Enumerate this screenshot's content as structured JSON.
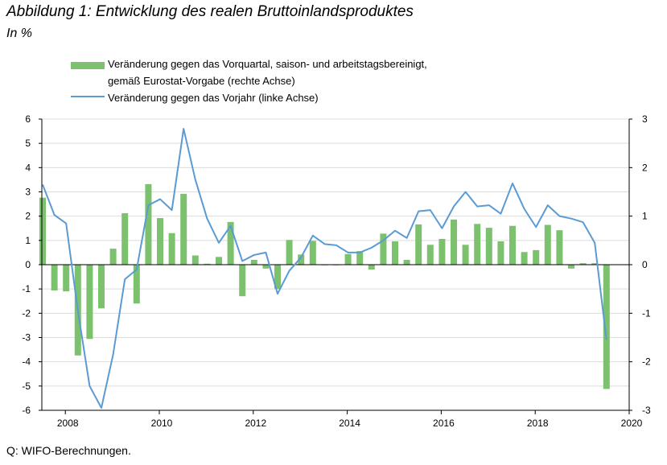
{
  "title": "Abbildung 1: Entwicklung des realen Bruttoinlandsproduktes",
  "subtitle": "In %",
  "legend": {
    "bar_line1": "Veränderung gegen das Vorquartal, saison- und arbeitstagsbereinigt,",
    "bar_line2": "gemäß Eurostat-Vorgabe (rechte Achse)",
    "line": "Veränderung gegen das Vorjahr (linke Achse)"
  },
  "source": "Q: WIFO-Berechnungen.",
  "chart_data": {
    "type": "bar+line",
    "bar_color": "#7cc16e",
    "line_color": "#5a9bd4",
    "left_axis": {
      "ylim": [
        -6,
        6
      ],
      "ticks": [
        "-6",
        "-5",
        "-4",
        "-3",
        "-2",
        "-1",
        "0",
        "1",
        "2",
        "3",
        "4",
        "5",
        "6"
      ]
    },
    "right_axis": {
      "ylim": [
        -3,
        3
      ],
      "ticks": [
        "-3",
        "-2",
        "-1",
        "0",
        "1",
        "2",
        "3"
      ]
    },
    "x_axis": {
      "range": [
        2007.5,
        2020
      ],
      "tick_labels": [
        "2008",
        "2010",
        "2012",
        "2014",
        "2016",
        "2018",
        "2020"
      ]
    },
    "grid": "horizontal",
    "bars_qoq": {
      "x": [
        2007.5,
        2007.75,
        2008.0,
        2008.25,
        2008.5,
        2008.75,
        2009.0,
        2009.25,
        2009.5,
        2009.75,
        2010.0,
        2010.25,
        2010.5,
        2010.75,
        2011.0,
        2011.25,
        2011.5,
        2011.75,
        2012.0,
        2012.25,
        2012.5,
        2012.75,
        2013.0,
        2013.25,
        2013.5,
        2013.75,
        2014.0,
        2014.25,
        2014.5,
        2014.75,
        2015.0,
        2015.25,
        2015.5,
        2015.75,
        2016.0,
        2016.25,
        2016.5,
        2016.75,
        2017.0,
        2017.25,
        2017.5,
        2017.75,
        2018.0,
        2018.25,
        2018.5,
        2018.75,
        2019.0,
        2019.25,
        2019.5
      ],
      "values": [
        1.38,
        -0.53,
        -0.55,
        -1.87,
        -1.53,
        -0.9,
        0.33,
        1.06,
        -0.8,
        1.66,
        0.96,
        0.65,
        1.46,
        0.19,
        0.02,
        0.16,
        0.88,
        -0.65,
        0.1,
        -0.08,
        -0.5,
        0.51,
        0.21,
        0.49,
        -0.01,
        -0.01,
        0.22,
        0.28,
        -0.1,
        0.64,
        0.48,
        0.1,
        0.83,
        0.41,
        0.53,
        0.93,
        0.41,
        0.84,
        0.76,
        0.48,
        0.8,
        0.26,
        0.3,
        0.82,
        0.71,
        -0.08,
        0.03,
        0.03,
        -2.56
      ]
    },
    "line_yoy": {
      "x": [
        2007.5,
        2007.75,
        2008.0,
        2008.25,
        2008.5,
        2008.75,
        2009.0,
        2009.25,
        2009.5,
        2009.75,
        2010.0,
        2010.25,
        2010.5,
        2010.75,
        2011.0,
        2011.25,
        2011.5,
        2011.75,
        2012.0,
        2012.25,
        2012.5,
        2012.75,
        2013.0,
        2013.25,
        2013.5,
        2013.75,
        2014.0,
        2014.25,
        2014.5,
        2014.75,
        2015.0,
        2015.25,
        2015.5,
        2015.75,
        2016.0,
        2016.25,
        2016.5,
        2016.75,
        2017.0,
        2017.25,
        2017.5,
        2017.75,
        2018.0,
        2018.25,
        2018.5,
        2018.75,
        2019.0,
        2019.25,
        2019.5
      ],
      "values": [
        3.3,
        2.05,
        1.7,
        -1.9,
        -5.0,
        -5.9,
        -3.7,
        -0.6,
        -0.2,
        2.45,
        2.7,
        2.25,
        5.6,
        3.5,
        1.9,
        0.9,
        1.6,
        0.15,
        0.4,
        0.5,
        -1.2,
        -0.25,
        0.3,
        1.2,
        0.85,
        0.8,
        0.5,
        0.5,
        0.7,
        1.0,
        1.4,
        1.1,
        2.2,
        2.25,
        1.5,
        2.4,
        3.0,
        2.4,
        2.45,
        2.1,
        3.35,
        2.3,
        1.55,
        2.45,
        2.0,
        1.9,
        1.75,
        0.9,
        -3.1
      ]
    }
  }
}
